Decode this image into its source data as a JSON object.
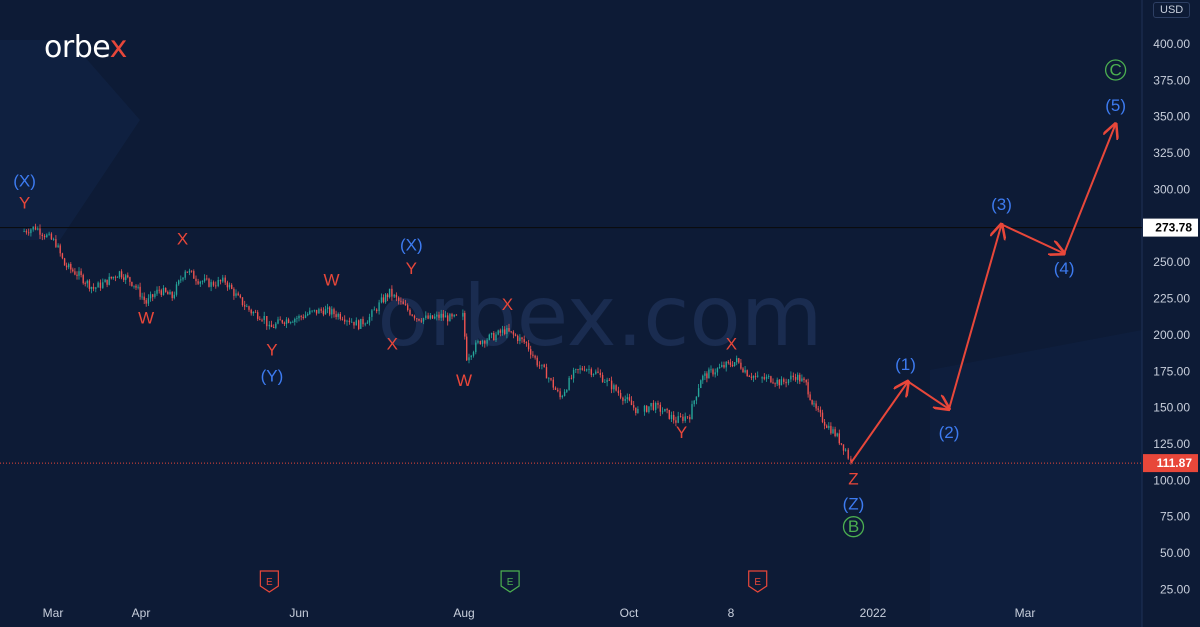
{
  "brand": {
    "name_left": "orbe",
    "name_x": "x"
  },
  "watermark": "orbex.com",
  "currency": "USD",
  "colors": {
    "background": "#0d1b36",
    "bull_candle": "#26a69a",
    "bear_candle": "#ef5350",
    "wave_red": "#e8473a",
    "wave_blue": "#3d7bf0",
    "wave_green": "#4caf50",
    "projection": "#e8473a"
  },
  "chart_data": {
    "type": "line",
    "y_axis": {
      "ticks": [
        400,
        375,
        350,
        325,
        300,
        250,
        225,
        200,
        175,
        150,
        125,
        100,
        75,
        50,
        25
      ],
      "tick_labels": [
        "400.00",
        "375.00",
        "350.00",
        "325.00",
        "300.00",
        "250.00",
        "225.00",
        "200.00",
        "175.00",
        "150.00",
        "125.00",
        "100.00",
        "75.00",
        "50.00",
        "25.00"
      ],
      "ylim": [
        15,
        425
      ]
    },
    "x_axis": {
      "labels": [
        "Mar",
        "Apr",
        "Jun",
        "Aug",
        "Oct",
        "8",
        "2022",
        "Mar"
      ]
    },
    "price_lines": [
      {
        "value": 273.78,
        "label": "273.78",
        "style": "solid",
        "color": "#c8cfdc"
      },
      {
        "value": 111.87,
        "label": "111.87",
        "style": "dotted",
        "color": "#e8473a"
      }
    ],
    "series": [
      {
        "name": "",
        "style": "candles",
        "points": [
          [
            "Feb 20",
            271
          ],
          [
            "Feb 25",
            274
          ],
          [
            "Mar 2",
            263
          ],
          [
            "Mar 5",
            248
          ],
          [
            "Mar 10",
            241
          ],
          [
            "Mar 15",
            232
          ],
          [
            "Mar 19",
            236
          ],
          [
            "Mar 24",
            243
          ],
          [
            "Mar 29",
            235
          ],
          [
            "Apr 3",
            222
          ],
          [
            "Apr 8",
            231
          ],
          [
            "Apr 13",
            226
          ],
          [
            "Apr 18",
            245
          ],
          [
            "Apr 23",
            238
          ],
          [
            "Apr 28",
            235
          ],
          [
            "May 3",
            237
          ],
          [
            "May 8",
            225
          ],
          [
            "May 13",
            216
          ],
          [
            "May 18",
            212
          ],
          [
            "May 20",
            204
          ],
          [
            "May 25",
            210
          ],
          [
            "Jun 1",
            212
          ],
          [
            "Jun 5",
            215
          ],
          [
            "Jun 10",
            217
          ],
          [
            "Jun 17",
            213
          ],
          [
            "Jun 23",
            207
          ],
          [
            "Jun 27",
            212
          ],
          [
            "Jul 1",
            223
          ],
          [
            "Jul 4",
            229
          ],
          [
            "Jul 9",
            220
          ],
          [
            "Jul 14",
            212
          ],
          [
            "Jul 19",
            211
          ],
          [
            "Jul 23",
            213
          ],
          [
            "Jul 27",
            211
          ],
          [
            "Jul 31",
            213
          ],
          [
            "Aug 2",
            185
          ],
          [
            "Aug 7",
            196
          ],
          [
            "Aug 12",
            199
          ],
          [
            "Aug 16",
            203
          ],
          [
            "Aug 20",
            199
          ],
          [
            "Aug 24",
            194
          ],
          [
            "Aug 28",
            181
          ],
          [
            "Sep 1",
            173
          ],
          [
            "Sep 6",
            157
          ],
          [
            "Sep 11",
            173
          ],
          [
            "Sep 15",
            178
          ],
          [
            "Sep 20",
            173
          ],
          [
            "Sep 25",
            165
          ],
          [
            "Sep 30",
            156
          ],
          [
            "Oct 5",
            146
          ],
          [
            "Oct 9",
            152
          ],
          [
            "Oct 14",
            147
          ],
          [
            "Oct 18",
            141
          ],
          [
            "Oct 23",
            145
          ],
          [
            "Oct 27",
            170
          ],
          [
            "Nov 1",
            175
          ],
          [
            "Nov 6",
            179
          ],
          [
            "Nov 10",
            182
          ],
          [
            "Nov 14",
            174
          ],
          [
            "Nov 18",
            170
          ],
          [
            "Nov 23",
            170
          ],
          [
            "Nov 27",
            167
          ],
          [
            "Dec 2",
            172
          ],
          [
            "Dec 6",
            166
          ],
          [
            "Dec 9",
            150
          ],
          [
            "Dec 13",
            140
          ],
          [
            "Dec 17",
            132
          ],
          [
            "Dec 21",
            121
          ],
          [
            "Dec 23",
            112
          ]
        ]
      },
      {
        "name": "",
        "style": "projection",
        "points": [
          [
            "Dec 23",
            112
          ],
          [
            "Jan 15",
            168
          ],
          [
            "Feb 1",
            149
          ],
          [
            "Feb 22",
            276
          ],
          [
            "Mar 15",
            256
          ],
          [
            "Apr 3",
            345
          ]
        ]
      }
    ],
    "wave_labels": [
      {
        "text": "(X)",
        "color": "blue",
        "x": "Feb 21",
        "y": 302
      },
      {
        "text": "Y",
        "color": "red",
        "x": "Feb 21",
        "y": 287
      },
      {
        "text": "X",
        "color": "red",
        "x": "Apr 17",
        "y": 262
      },
      {
        "text": "W",
        "color": "red",
        "x": "Apr 3",
        "y": 208
      },
      {
        "text": "Y",
        "color": "red",
        "x": "May 21",
        "y": 186
      },
      {
        "text": "(Y)",
        "color": "blue",
        "x": "May 21",
        "y": 168
      },
      {
        "text": "W",
        "color": "red",
        "x": "Jun 13",
        "y": 234
      },
      {
        "text": "X",
        "color": "red",
        "x": "Jul 5",
        "y": 190
      },
      {
        "text": "(X)",
        "color": "blue",
        "x": "Jul 12",
        "y": 258
      },
      {
        "text": "Y",
        "color": "red",
        "x": "Jul 12",
        "y": 242
      },
      {
        "text": "X",
        "color": "red",
        "x": "Aug 17",
        "y": 217
      },
      {
        "text": "W",
        "color": "red",
        "x": "Aug 1",
        "y": 165
      },
      {
        "text": "Y",
        "color": "red",
        "x": "Oct 20",
        "y": 129
      },
      {
        "text": "X",
        "color": "red",
        "x": "Nov 8",
        "y": 190
      },
      {
        "text": "Z",
        "color": "red",
        "x": "Dec 24",
        "y": 97
      },
      {
        "text": "(Z)",
        "color": "blue",
        "x": "Dec 24",
        "y": 80
      },
      {
        "text": "B",
        "color": "green",
        "circled": true,
        "x": "Dec 24",
        "y": 64
      },
      {
        "text": "(1)",
        "color": "blue",
        "x": "Jan 14",
        "y": 176
      },
      {
        "text": "(2)",
        "color": "blue",
        "x": "Feb 1",
        "y": 129
      },
      {
        "text": "(3)",
        "color": "blue",
        "x": "Feb 22",
        "y": 286
      },
      {
        "text": "(4)",
        "color": "blue",
        "x": "Mar 15",
        "y": 242
      },
      {
        "text": "(5)",
        "color": "blue",
        "x": "Apr 3",
        "y": 354
      },
      {
        "text": "C",
        "color": "green",
        "circled": true,
        "x": "Apr 3",
        "y": 378
      }
    ],
    "earnings_markers": [
      {
        "text": "E",
        "color": "red",
        "x": "May 20"
      },
      {
        "text": "E",
        "color": "green",
        "x": "Aug 18"
      },
      {
        "text": "E",
        "color": "red",
        "x": "Nov 18"
      }
    ]
  }
}
